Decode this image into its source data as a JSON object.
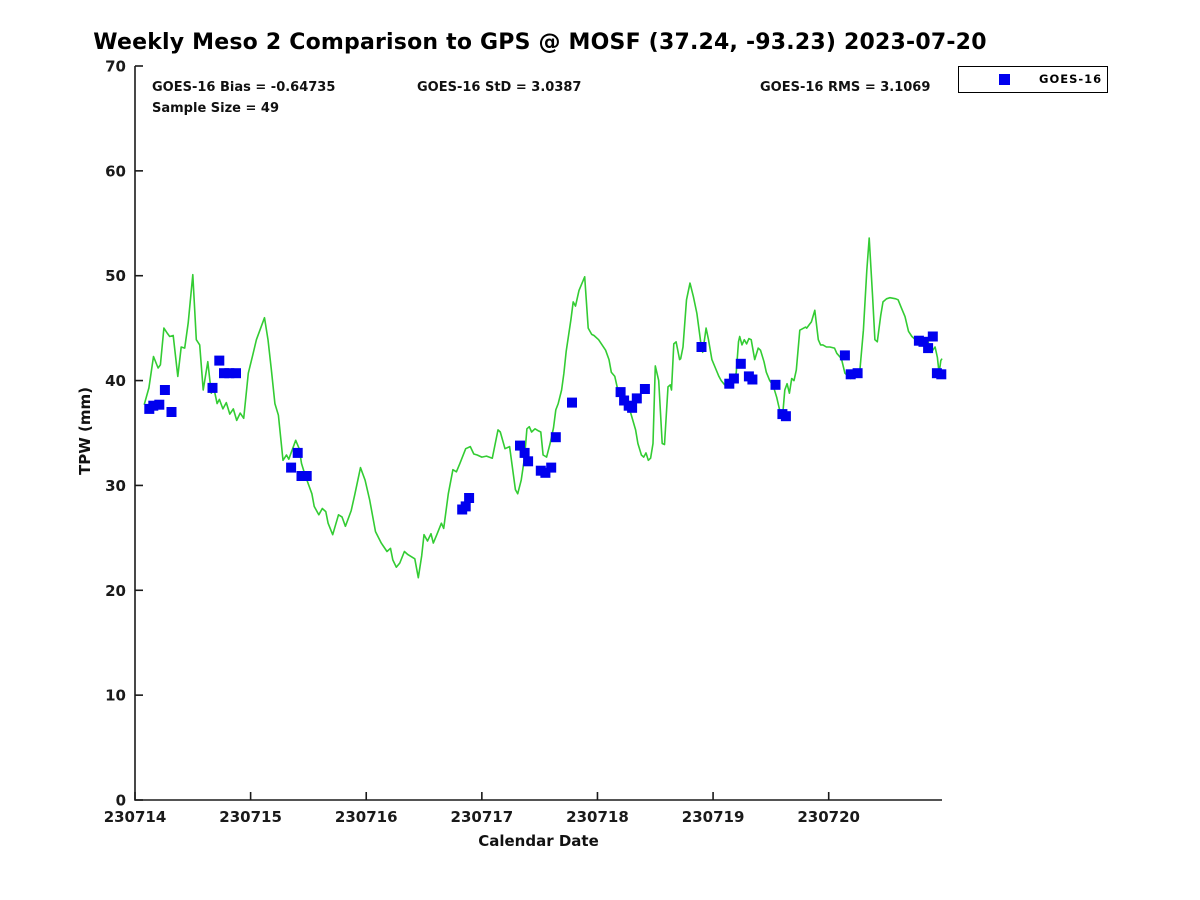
{
  "title": "Weekly Meso 2 Comparison to GPS @ MOSF (37.24, -93.23) 2023-07-20",
  "annotations": {
    "bias": "GOES-16 Bias = -0.64735",
    "std": "GOES-16 StD = 3.0387",
    "rms": "GOES-16 RMS = 3.1069",
    "sample_size": "Sample Size = 49"
  },
  "legend": {
    "position": "top-right",
    "entries": [
      {
        "label": "GOES-16",
        "marker": "filled-square",
        "color": "#0000ee"
      }
    ]
  },
  "colors": {
    "line_green": "#33cc33",
    "marker_blue": "#0000ee",
    "axis": "#1a1a1a",
    "background": "#ffffff"
  },
  "chart_data": {
    "type": "line",
    "title": "Weekly Meso 2 Comparison to GPS @ MOSF (37.24, -93.23) 2023-07-20",
    "xlabel": "Calendar Date",
    "ylabel": "TPW (mm)",
    "x_tick_labels": [
      "230714",
      "230715",
      "230716",
      "230717",
      "230718",
      "230719",
      "230720"
    ],
    "x_tick_days": [
      0,
      1,
      2,
      3,
      4,
      5,
      6
    ],
    "xlim_days": [
      0,
      6.98
    ],
    "ylim": [
      0,
      70
    ],
    "y_ticks": [
      0,
      10,
      20,
      30,
      40,
      50,
      60,
      70
    ],
    "grid": false,
    "legend_position": "top-right",
    "x_unit": "days since 230714 00:00 UTC",
    "series": [
      {
        "name": "GPS",
        "type": "line",
        "color": "#33cc33",
        "points": [
          [
            0.08,
            37.7
          ],
          [
            0.12,
            39.3
          ],
          [
            0.16,
            42.3
          ],
          [
            0.2,
            41.2
          ],
          [
            0.22,
            41.5
          ],
          [
            0.25,
            45.0
          ],
          [
            0.28,
            44.5
          ],
          [
            0.3,
            44.2
          ],
          [
            0.33,
            44.3
          ],
          [
            0.37,
            40.4
          ],
          [
            0.4,
            43.2
          ],
          [
            0.43,
            43.1
          ],
          [
            0.46,
            45.5
          ],
          [
            0.5,
            50.1
          ],
          [
            0.53,
            43.9
          ],
          [
            0.56,
            43.4
          ],
          [
            0.59,
            39.1
          ],
          [
            0.63,
            41.8
          ],
          [
            0.66,
            38.8
          ],
          [
            0.68,
            39.4
          ],
          [
            0.71,
            37.8
          ],
          [
            0.73,
            38.2
          ],
          [
            0.76,
            37.3
          ],
          [
            0.79,
            37.9
          ],
          [
            0.82,
            36.8
          ],
          [
            0.85,
            37.3
          ],
          [
            0.88,
            36.2
          ],
          [
            0.91,
            36.9
          ],
          [
            0.94,
            36.4
          ],
          [
            0.98,
            40.7
          ],
          [
            1.02,
            42.5
          ],
          [
            1.05,
            43.9
          ],
          [
            1.08,
            44.8
          ],
          [
            1.12,
            46.0
          ],
          [
            1.15,
            43.9
          ],
          [
            1.18,
            41.0
          ],
          [
            1.21,
            37.8
          ],
          [
            1.24,
            36.7
          ],
          [
            1.28,
            32.4
          ],
          [
            1.31,
            32.9
          ],
          [
            1.33,
            32.5
          ],
          [
            1.39,
            34.3
          ],
          [
            1.42,
            33.5
          ],
          [
            1.44,
            32.1
          ],
          [
            1.47,
            31.0
          ],
          [
            1.53,
            29.2
          ],
          [
            1.55,
            28.0
          ],
          [
            1.59,
            27.2
          ],
          [
            1.62,
            27.8
          ],
          [
            1.65,
            27.5
          ],
          [
            1.67,
            26.4
          ],
          [
            1.71,
            25.3
          ],
          [
            1.76,
            27.2
          ],
          [
            1.79,
            27.0
          ],
          [
            1.82,
            26.1
          ],
          [
            1.87,
            27.6
          ],
          [
            1.9,
            29.1
          ],
          [
            1.95,
            31.7
          ],
          [
            1.99,
            30.5
          ],
          [
            2.03,
            28.6
          ],
          [
            2.08,
            25.6
          ],
          [
            2.13,
            24.5
          ],
          [
            2.18,
            23.7
          ],
          [
            2.21,
            24.0
          ],
          [
            2.23,
            22.9
          ],
          [
            2.26,
            22.2
          ],
          [
            2.29,
            22.6
          ],
          [
            2.33,
            23.7
          ],
          [
            2.36,
            23.4
          ],
          [
            2.42,
            23.0
          ],
          [
            2.45,
            21.2
          ],
          [
            2.48,
            23.3
          ],
          [
            2.5,
            25.3
          ],
          [
            2.53,
            24.7
          ],
          [
            2.56,
            25.4
          ],
          [
            2.58,
            24.5
          ],
          [
            2.61,
            25.3
          ],
          [
            2.65,
            26.4
          ],
          [
            2.67,
            25.9
          ],
          [
            2.71,
            29.2
          ],
          [
            2.75,
            31.5
          ],
          [
            2.78,
            31.3
          ],
          [
            2.81,
            32.1
          ],
          [
            2.86,
            33.5
          ],
          [
            2.9,
            33.7
          ],
          [
            2.93,
            33.0
          ],
          [
            2.96,
            32.9
          ],
          [
            3.0,
            32.7
          ],
          [
            3.04,
            32.8
          ],
          [
            3.09,
            32.6
          ],
          [
            3.14,
            35.3
          ],
          [
            3.16,
            35.1
          ],
          [
            3.2,
            33.5
          ],
          [
            3.24,
            33.7
          ],
          [
            3.29,
            29.6
          ],
          [
            3.31,
            29.2
          ],
          [
            3.34,
            30.5
          ],
          [
            3.37,
            32.7
          ],
          [
            3.39,
            35.4
          ],
          [
            3.41,
            35.6
          ],
          [
            3.43,
            35.1
          ],
          [
            3.46,
            35.4
          ],
          [
            3.49,
            35.2
          ],
          [
            3.51,
            35.1
          ],
          [
            3.53,
            32.9
          ],
          [
            3.56,
            32.7
          ],
          [
            3.59,
            34.0
          ],
          [
            3.62,
            35.5
          ],
          [
            3.64,
            37.2
          ],
          [
            3.66,
            37.8
          ],
          [
            3.69,
            39.1
          ],
          [
            3.71,
            40.7
          ],
          [
            3.73,
            42.8
          ],
          [
            3.77,
            45.8
          ],
          [
            3.79,
            47.5
          ],
          [
            3.81,
            47.1
          ],
          [
            3.84,
            48.6
          ],
          [
            3.89,
            49.9
          ],
          [
            3.92,
            45.0
          ],
          [
            3.95,
            44.4
          ],
          [
            3.97,
            44.3
          ],
          [
            4.01,
            43.9
          ],
          [
            4.04,
            43.4
          ],
          [
            4.07,
            42.9
          ],
          [
            4.1,
            42.0
          ],
          [
            4.12,
            40.8
          ],
          [
            4.15,
            40.4
          ],
          [
            4.18,
            38.9
          ],
          [
            4.21,
            38.6
          ],
          [
            4.24,
            38.3
          ],
          [
            4.26,
            37.8
          ],
          [
            4.28,
            37.2
          ],
          [
            4.33,
            35.3
          ],
          [
            4.35,
            34.0
          ],
          [
            4.38,
            32.9
          ],
          [
            4.4,
            32.7
          ],
          [
            4.42,
            33.1
          ],
          [
            4.44,
            32.4
          ],
          [
            4.46,
            32.6
          ],
          [
            4.48,
            34.0
          ],
          [
            4.5,
            41.4
          ],
          [
            4.53,
            40.0
          ],
          [
            4.56,
            34.0
          ],
          [
            4.58,
            33.9
          ],
          [
            4.61,
            39.4
          ],
          [
            4.63,
            39.6
          ],
          [
            4.64,
            39.1
          ],
          [
            4.66,
            43.5
          ],
          [
            4.68,
            43.7
          ],
          [
            4.71,
            42.0
          ],
          [
            4.72,
            42.1
          ],
          [
            4.74,
            43.2
          ],
          [
            4.77,
            47.7
          ],
          [
            4.8,
            49.3
          ],
          [
            4.83,
            48.0
          ],
          [
            4.86,
            46.4
          ],
          [
            4.9,
            43.1
          ],
          [
            4.91,
            42.7
          ],
          [
            4.94,
            45.0
          ],
          [
            4.96,
            43.9
          ],
          [
            4.99,
            42.0
          ],
          [
            5.02,
            41.2
          ],
          [
            5.05,
            40.4
          ],
          [
            5.07,
            40.0
          ],
          [
            5.1,
            39.6
          ],
          [
            5.13,
            39.5
          ],
          [
            5.15,
            39.5
          ],
          [
            5.18,
            40.4
          ],
          [
            5.2,
            40.7
          ],
          [
            5.22,
            43.7
          ],
          [
            5.23,
            44.2
          ],
          [
            5.25,
            43.4
          ],
          [
            5.27,
            43.9
          ],
          [
            5.29,
            43.5
          ],
          [
            5.31,
            44.0
          ],
          [
            5.33,
            43.9
          ],
          [
            5.36,
            42.0
          ],
          [
            5.39,
            43.1
          ],
          [
            5.41,
            42.9
          ],
          [
            5.44,
            41.8
          ],
          [
            5.46,
            40.8
          ],
          [
            5.49,
            40.0
          ],
          [
            5.52,
            39.5
          ],
          [
            5.55,
            38.4
          ],
          [
            5.58,
            37.0
          ],
          [
            5.6,
            36.4
          ],
          [
            5.62,
            39.1
          ],
          [
            5.64,
            39.7
          ],
          [
            5.66,
            38.8
          ],
          [
            5.68,
            40.2
          ],
          [
            5.7,
            40.0
          ],
          [
            5.72,
            41.0
          ],
          [
            5.75,
            44.8
          ],
          [
            5.8,
            45.1
          ],
          [
            5.81,
            45.0
          ],
          [
            5.83,
            45.3
          ],
          [
            5.85,
            45.6
          ],
          [
            5.88,
            46.7
          ],
          [
            5.91,
            43.9
          ],
          [
            5.93,
            43.4
          ],
          [
            5.95,
            43.4
          ],
          [
            5.98,
            43.2
          ],
          [
            6.01,
            43.2
          ],
          [
            6.05,
            43.1
          ],
          [
            6.07,
            42.6
          ],
          [
            6.11,
            42.1
          ],
          [
            6.14,
            40.7
          ],
          [
            6.16,
            40.5
          ],
          [
            6.19,
            40.2
          ],
          [
            6.21,
            40.7
          ],
          [
            6.23,
            40.4
          ],
          [
            6.25,
            40.8
          ],
          [
            6.27,
            41.0
          ],
          [
            6.3,
            44.8
          ],
          [
            6.33,
            50.5
          ],
          [
            6.35,
            53.6
          ],
          [
            6.38,
            48.0
          ],
          [
            6.4,
            43.9
          ],
          [
            6.42,
            43.7
          ],
          [
            6.45,
            46.2
          ],
          [
            6.47,
            47.5
          ],
          [
            6.5,
            47.8
          ],
          [
            6.53,
            47.9
          ],
          [
            6.58,
            47.8
          ],
          [
            6.6,
            47.7
          ],
          [
            6.63,
            46.9
          ],
          [
            6.66,
            46.1
          ],
          [
            6.69,
            44.7
          ],
          [
            6.72,
            44.2
          ],
          [
            6.75,
            43.9
          ],
          [
            6.76,
            44.0
          ],
          [
            6.78,
            43.5
          ],
          [
            6.8,
            44.0
          ],
          [
            6.82,
            43.4
          ],
          [
            6.84,
            43.9
          ],
          [
            6.86,
            43.7
          ],
          [
            6.88,
            42.7
          ],
          [
            6.9,
            42.9
          ],
          [
            6.92,
            43.2
          ],
          [
            6.94,
            42.2
          ],
          [
            6.955,
            40.7
          ],
          [
            6.97,
            41.9
          ],
          [
            6.98,
            42.1
          ]
        ]
      },
      {
        "name": "GOES-16",
        "type": "scatter",
        "marker": "square",
        "marker_size_px": 10,
        "color": "#0000ee",
        "points": [
          [
            0.124,
            37.3
          ],
          [
            0.158,
            37.6
          ],
          [
            0.21,
            37.7
          ],
          [
            0.259,
            39.1
          ],
          [
            0.316,
            37.0
          ],
          [
            0.67,
            39.3
          ],
          [
            0.729,
            41.9
          ],
          [
            0.77,
            40.7
          ],
          [
            0.816,
            40.7
          ],
          [
            0.874,
            40.7
          ],
          [
            1.35,
            31.7
          ],
          [
            1.407,
            33.1
          ],
          [
            1.44,
            30.9
          ],
          [
            1.485,
            30.9
          ],
          [
            2.83,
            27.7
          ],
          [
            2.86,
            28.0
          ],
          [
            2.89,
            28.8
          ],
          [
            3.33,
            33.8
          ],
          [
            3.37,
            33.1
          ],
          [
            3.4,
            32.3
          ],
          [
            3.51,
            31.4
          ],
          [
            3.55,
            31.2
          ],
          [
            3.6,
            31.7
          ],
          [
            3.64,
            34.6
          ],
          [
            3.78,
            37.9
          ],
          [
            4.2,
            38.9
          ],
          [
            4.23,
            38.1
          ],
          [
            4.27,
            37.6
          ],
          [
            4.3,
            37.4
          ],
          [
            4.34,
            38.3
          ],
          [
            4.41,
            39.2
          ],
          [
            4.9,
            43.2
          ],
          [
            5.14,
            39.7
          ],
          [
            5.18,
            40.2
          ],
          [
            5.24,
            41.6
          ],
          [
            5.31,
            40.4
          ],
          [
            5.34,
            40.1
          ],
          [
            5.54,
            39.6
          ],
          [
            5.6,
            36.8
          ],
          [
            5.63,
            36.6
          ],
          [
            6.14,
            42.4
          ],
          [
            6.19,
            40.6
          ],
          [
            6.25,
            40.7
          ],
          [
            6.78,
            43.8
          ],
          [
            6.82,
            43.7
          ],
          [
            6.86,
            43.1
          ],
          [
            6.9,
            44.2
          ],
          [
            6.936,
            40.7
          ],
          [
            6.974,
            40.6
          ]
        ]
      }
    ]
  }
}
